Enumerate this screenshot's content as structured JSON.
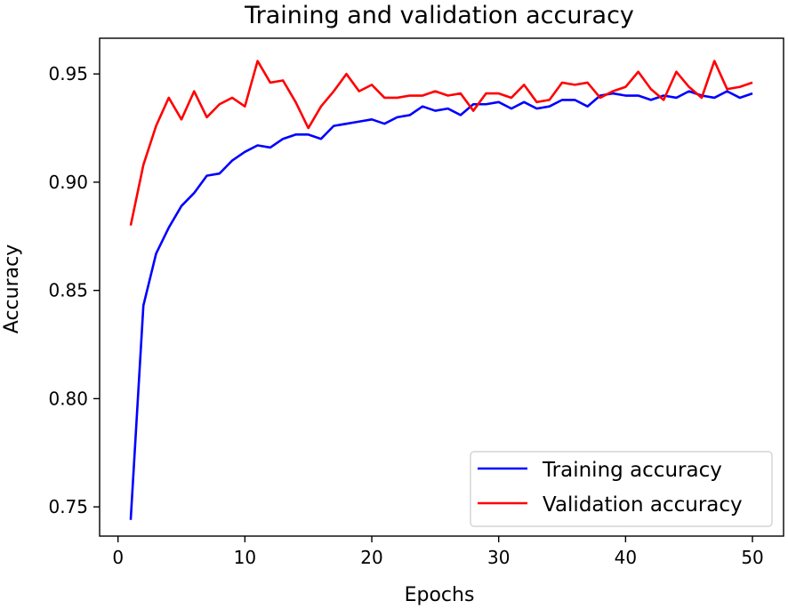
{
  "chart_data": {
    "type": "line",
    "title": "Training and validation accuracy",
    "xlabel": "Epochs",
    "ylabel": "Accuracy",
    "xlim": [
      -1.45,
      52.45
    ],
    "ylim": [
      0.7365,
      0.9665
    ],
    "xticks": [
      0,
      10,
      20,
      30,
      40,
      50
    ],
    "yticks": [
      0.75,
      0.8,
      0.85,
      0.9,
      0.95
    ],
    "ytick_labels": [
      "0.75",
      "0.80",
      "0.85",
      "0.90",
      "0.95"
    ],
    "grid": false,
    "legend_position": "lower-right",
    "x": [
      1,
      2,
      3,
      4,
      5,
      6,
      7,
      8,
      9,
      10,
      11,
      12,
      13,
      14,
      15,
      16,
      17,
      18,
      19,
      20,
      21,
      22,
      23,
      24,
      25,
      26,
      27,
      28,
      29,
      30,
      31,
      32,
      33,
      34,
      35,
      36,
      37,
      38,
      39,
      40,
      41,
      42,
      43,
      44,
      45,
      46,
      47,
      48,
      49,
      50
    ],
    "series": [
      {
        "name": "Training accuracy",
        "color": "#0000ff",
        "values": [
          0.744,
          0.843,
          0.867,
          0.879,
          0.889,
          0.895,
          0.903,
          0.904,
          0.91,
          0.914,
          0.917,
          0.916,
          0.92,
          0.922,
          0.922,
          0.92,
          0.926,
          0.927,
          0.928,
          0.929,
          0.927,
          0.93,
          0.931,
          0.935,
          0.933,
          0.934,
          0.931,
          0.936,
          0.936,
          0.937,
          0.934,
          0.937,
          0.934,
          0.935,
          0.938,
          0.938,
          0.935,
          0.94,
          0.941,
          0.94,
          0.94,
          0.938,
          0.94,
          0.939,
          0.942,
          0.94,
          0.939,
          0.942,
          0.939,
          0.941
        ]
      },
      {
        "name": "Validation accuracy",
        "color": "#ff0000",
        "values": [
          0.88,
          0.908,
          0.926,
          0.939,
          0.929,
          0.942,
          0.93,
          0.936,
          0.939,
          0.935,
          0.956,
          0.946,
          0.947,
          0.937,
          0.925,
          0.935,
          0.942,
          0.95,
          0.942,
          0.945,
          0.939,
          0.939,
          0.94,
          0.94,
          0.942,
          0.94,
          0.941,
          0.933,
          0.941,
          0.941,
          0.939,
          0.945,
          0.937,
          0.938,
          0.946,
          0.945,
          0.946,
          0.939,
          0.942,
          0.944,
          0.951,
          0.943,
          0.938,
          0.951,
          0.944,
          0.939,
          0.956,
          0.943,
          0.944,
          0.946
        ]
      }
    ]
  }
}
